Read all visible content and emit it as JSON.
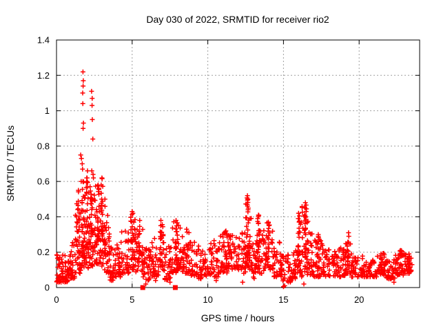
{
  "figure": {
    "title": "Day 030 of 2022, SRMTID for receiver rio2",
    "xlabel": "GPS time / hours",
    "ylabel": "SRMTID / TECUs"
  },
  "chart_data": {
    "type": "scatter",
    "title": "Day 030 of 2022, SRMTID for receiver rio2",
    "xlabel": "GPS time / hours",
    "ylabel": "SRMTID / TECUs",
    "xlim": [
      0,
      24
    ],
    "ylim": [
      0,
      1.4
    ],
    "xticks": [
      0,
      5,
      10,
      15,
      20
    ],
    "ytick_labels": [
      "0",
      "0.2",
      "0.4",
      "0.6",
      "0.8",
      "1",
      "1.2",
      "1.4"
    ],
    "yticks": [
      0,
      0.2,
      0.4,
      0.6,
      0.8,
      1,
      1.2,
      1.4
    ],
    "grid": true,
    "legend_position": "none",
    "marker": "plus",
    "marker_color": "#ff0000",
    "grid_color": "#9e9e9e",
    "border_color": "#000000",
    "series_name": "SRMTID",
    "description": "Dense 30-s scatter: baseline ~0.05-0.2 TECU all day; large ionospheric disturbance near 1.6-3.1 h peaking 1.22; secondary peaks ~12.6 h (0.52), ~16.4 h (0.48), ~13.3 h (0.41), ~16.0 h (0.42), ~19.3 h (0.31); two square flag markers on the zero line at 5.7 h and 7.85 h; data ends ~23.5 h.",
    "peak_points": [
      [
        1.75,
        1.22
      ],
      [
        1.77,
        1.17
      ],
      [
        1.76,
        1.14
      ],
      [
        1.73,
        1.1
      ],
      [
        1.74,
        1.04
      ],
      [
        1.78,
        0.93
      ],
      [
        1.76,
        0.9
      ],
      [
        1.6,
        0.75
      ],
      [
        1.65,
        0.73
      ],
      [
        1.7,
        0.7
      ],
      [
        1.72,
        0.67
      ],
      [
        1.63,
        0.6
      ],
      [
        2.32,
        1.11
      ],
      [
        2.36,
        1.07
      ],
      [
        2.35,
        1.03
      ],
      [
        2.37,
        0.95
      ],
      [
        2.4,
        0.84
      ],
      [
        2.33,
        0.66
      ],
      [
        2.42,
        0.64
      ],
      [
        2.44,
        0.62
      ],
      [
        2.05,
        0.66
      ],
      [
        2.02,
        0.62
      ],
      [
        2.95,
        0.58
      ],
      [
        2.8,
        0.56
      ],
      [
        12.62,
        0.52
      ],
      [
        12.65,
        0.5
      ],
      [
        12.6,
        0.47
      ],
      [
        12.63,
        0.46
      ],
      [
        12.66,
        0.44
      ],
      [
        13.35,
        0.41
      ],
      [
        13.3,
        0.39
      ],
      [
        14.0,
        0.37
      ],
      [
        16.45,
        0.48
      ],
      [
        16.42,
        0.45
      ],
      [
        16.5,
        0.43
      ],
      [
        16.0,
        0.42
      ],
      [
        15.98,
        0.39
      ],
      [
        5.05,
        0.42
      ],
      [
        6.9,
        0.38
      ],
      [
        7.9,
        0.38
      ],
      [
        11.2,
        0.32
      ],
      [
        19.3,
        0.31
      ],
      [
        19.32,
        0.29
      ],
      [
        17.3,
        0.29
      ],
      [
        15.0,
        0.005
      ],
      [
        15.08,
        0.01
      ],
      [
        6.55,
        0.04
      ],
      [
        5.9,
        0.02
      ],
      [
        16.35,
        0.02
      ],
      [
        12.3,
        0.03
      ],
      [
        22.3,
        0.03
      ],
      [
        10.55,
        0.04
      ],
      [
        3.65,
        0.04
      ],
      [
        0.3,
        0.03
      ],
      [
        7.5,
        0.03
      ]
    ],
    "columns": [
      [
        1.45,
        0.15,
        0.55,
        12
      ],
      [
        1.75,
        0.2,
        0.6,
        10
      ],
      [
        2.0,
        0.2,
        0.62,
        14
      ],
      [
        2.35,
        0.2,
        0.5,
        10
      ],
      [
        2.75,
        0.2,
        0.58,
        14
      ],
      [
        3.0,
        0.25,
        0.62,
        12
      ],
      [
        3.2,
        0.15,
        0.5,
        10
      ],
      [
        5.0,
        0.18,
        0.43,
        10
      ],
      [
        5.5,
        0.15,
        0.38,
        8
      ],
      [
        6.9,
        0.12,
        0.38,
        12
      ],
      [
        7.9,
        0.12,
        0.38,
        12
      ],
      [
        8.6,
        0.1,
        0.33,
        8
      ],
      [
        11.2,
        0.1,
        0.32,
        8
      ],
      [
        12.62,
        0.12,
        0.52,
        16
      ],
      [
        13.35,
        0.08,
        0.41,
        14
      ],
      [
        14.0,
        0.15,
        0.37,
        10
      ],
      [
        16.0,
        0.12,
        0.42,
        12
      ],
      [
        16.45,
        0.1,
        0.48,
        16
      ],
      [
        17.3,
        0.08,
        0.3,
        8
      ],
      [
        19.3,
        0.1,
        0.31,
        10
      ],
      [
        21.45,
        0.08,
        0.19,
        8
      ],
      [
        22.75,
        0.08,
        0.21,
        8
      ],
      [
        23.3,
        0.08,
        0.19,
        8
      ]
    ],
    "bands": [
      [
        0.0,
        0.9,
        0.03,
        0.19,
        70
      ],
      [
        0.9,
        1.2,
        0.05,
        0.3,
        28
      ],
      [
        1.2,
        1.6,
        0.08,
        0.48,
        40
      ],
      [
        1.6,
        2.1,
        0.1,
        0.58,
        55
      ],
      [
        2.1,
        2.6,
        0.12,
        0.58,
        55
      ],
      [
        2.6,
        3.1,
        0.12,
        0.55,
        45
      ],
      [
        3.1,
        3.5,
        0.08,
        0.42,
        32
      ],
      [
        3.5,
        3.9,
        0.04,
        0.26,
        28
      ],
      [
        3.9,
        4.3,
        0.06,
        0.33,
        28
      ],
      [
        4.3,
        4.8,
        0.08,
        0.32,
        32
      ],
      [
        4.8,
        5.2,
        0.1,
        0.4,
        30
      ],
      [
        5.2,
        5.7,
        0.08,
        0.34,
        32
      ],
      [
        5.7,
        6.3,
        0.04,
        0.24,
        38
      ],
      [
        6.3,
        6.8,
        0.06,
        0.28,
        32
      ],
      [
        6.8,
        7.1,
        0.1,
        0.36,
        22
      ],
      [
        7.1,
        7.6,
        0.04,
        0.24,
        30
      ],
      [
        7.6,
        8.2,
        0.08,
        0.38,
        38
      ],
      [
        8.2,
        8.8,
        0.08,
        0.32,
        36
      ],
      [
        8.8,
        9.4,
        0.06,
        0.28,
        32
      ],
      [
        9.4,
        10.2,
        0.05,
        0.22,
        42
      ],
      [
        10.2,
        10.8,
        0.06,
        0.27,
        36
      ],
      [
        10.8,
        11.3,
        0.08,
        0.32,
        32
      ],
      [
        11.3,
        12.2,
        0.1,
        0.3,
        52
      ],
      [
        12.2,
        12.5,
        0.08,
        0.33,
        22
      ],
      [
        12.5,
        12.9,
        0.1,
        0.48,
        34
      ],
      [
        12.9,
        13.2,
        0.05,
        0.25,
        22
      ],
      [
        13.2,
        13.7,
        0.08,
        0.4,
        36
      ],
      [
        13.7,
        14.3,
        0.1,
        0.37,
        38
      ],
      [
        14.3,
        14.8,
        0.06,
        0.26,
        28
      ],
      [
        14.8,
        15.5,
        0.03,
        0.19,
        38
      ],
      [
        15.5,
        15.9,
        0.05,
        0.22,
        26
      ],
      [
        15.9,
        16.2,
        0.08,
        0.4,
        26
      ],
      [
        16.2,
        16.7,
        0.06,
        0.46,
        40
      ],
      [
        16.7,
        17.2,
        0.06,
        0.32,
        32
      ],
      [
        17.2,
        17.6,
        0.06,
        0.29,
        26
      ],
      [
        17.6,
        18.6,
        0.06,
        0.22,
        52
      ],
      [
        18.6,
        19.1,
        0.06,
        0.25,
        32
      ],
      [
        19.1,
        19.5,
        0.08,
        0.31,
        26
      ],
      [
        19.5,
        20.3,
        0.06,
        0.18,
        42
      ],
      [
        20.3,
        21.2,
        0.06,
        0.16,
        48
      ],
      [
        21.2,
        21.7,
        0.07,
        0.2,
        32
      ],
      [
        21.7,
        22.4,
        0.05,
        0.16,
        38
      ],
      [
        22.4,
        23.0,
        0.07,
        0.21,
        38
      ],
      [
        23.0,
        23.5,
        0.08,
        0.19,
        30
      ]
    ],
    "zero_square_markers_x": [
      5.7,
      7.85
    ]
  }
}
